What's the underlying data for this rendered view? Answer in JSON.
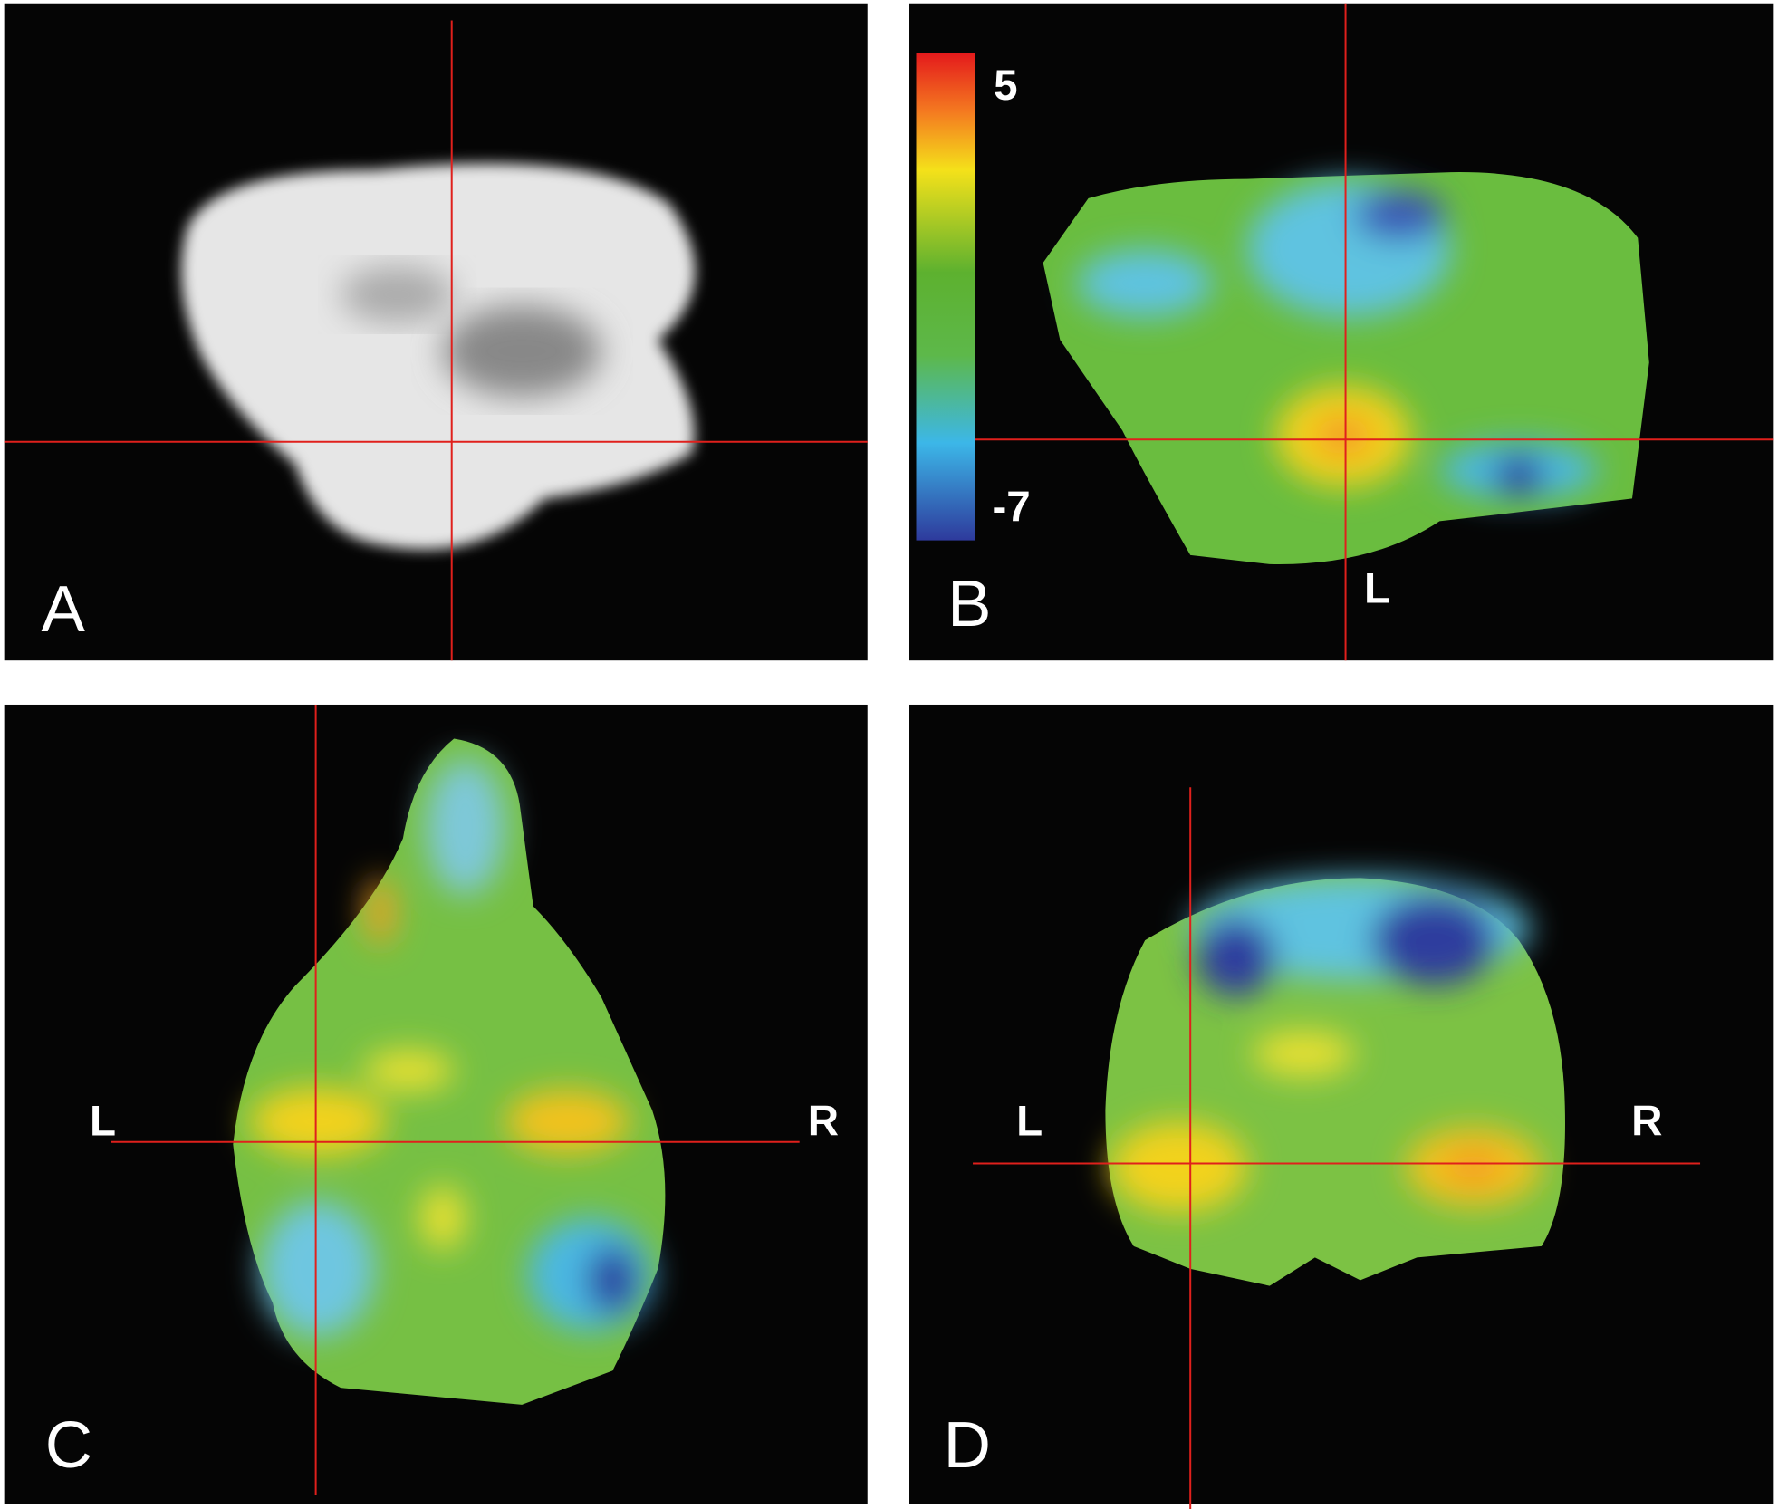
{
  "panels": [
    {
      "label": "A"
    },
    {
      "label": "B",
      "orientation": [
        "L"
      ]
    },
    {
      "label": "C",
      "orientation": [
        "L",
        "R"
      ]
    },
    {
      "label": "D",
      "orientation": [
        "L",
        "R"
      ]
    }
  ],
  "colorbar": {
    "max": 5,
    "min": -7
  }
}
